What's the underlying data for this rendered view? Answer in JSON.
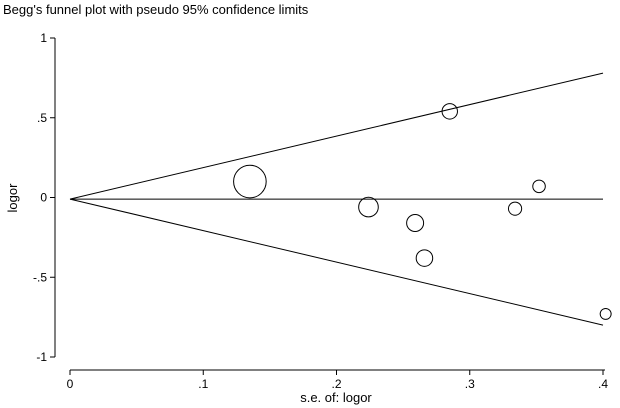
{
  "chart_data": {
    "type": "scatter",
    "title": "Begg's funnel plot with pseudo 95% confidence limits",
    "xlabel": "s.e. of: logor",
    "ylabel": "logor",
    "xlim": [
      0,
      0.4
    ],
    "ylim": [
      -1,
      1
    ],
    "x_ticks": [
      "0",
      ".1",
      ".2",
      ".3",
      ".4"
    ],
    "y_ticks": [
      "1",
      ".5",
      "0",
      "-.5",
      "-1"
    ],
    "x_tick_values": [
      0,
      0.1,
      0.2,
      0.3,
      0.4
    ],
    "y_tick_values": [
      1,
      0.5,
      0,
      -0.5,
      -1
    ],
    "pooled_estimate": -0.01,
    "confidence_limits": {
      "upper": [
        [
          0,
          -0.01
        ],
        [
          0.4,
          0.78
        ]
      ],
      "lower": [
        [
          0,
          -0.01
        ],
        [
          0.4,
          -0.8
        ]
      ]
    },
    "points": [
      {
        "x": 0.135,
        "y": 0.1,
        "weight": 54.9
      },
      {
        "x": 0.224,
        "y": -0.06,
        "weight": 19.9
      },
      {
        "x": 0.259,
        "y": -0.16,
        "weight": 14.9
      },
      {
        "x": 0.266,
        "y": -0.38,
        "weight": 14.1
      },
      {
        "x": 0.285,
        "y": 0.54,
        "weight": 12.3
      },
      {
        "x": 0.334,
        "y": -0.07,
        "weight": 9.0
      },
      {
        "x": 0.352,
        "y": 0.07,
        "weight": 8.1
      },
      {
        "x": 0.402,
        "y": -0.73,
        "weight": 6.2
      }
    ],
    "grid": false,
    "legend": "none"
  }
}
